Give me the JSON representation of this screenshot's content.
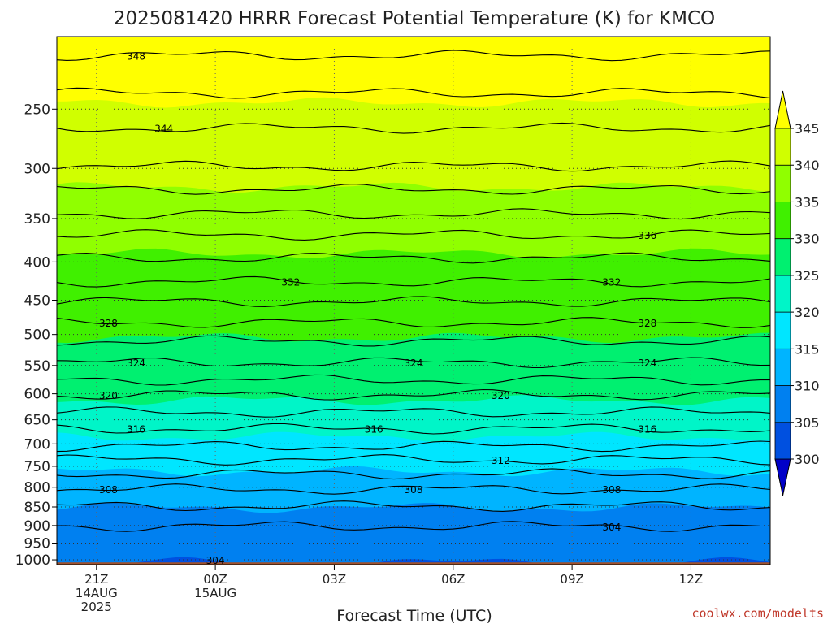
{
  "chart_data": {
    "type": "contour",
    "title": "2025081420 HRRR Forecast Potential Temperature (K) for KMCO",
    "xlabel": "Forecast Time (UTC)",
    "credit": "coolwx.com/modelts",
    "x_ticks": [
      {
        "h": 1,
        "label": "21Z",
        "sub": [
          "14AUG",
          "2025"
        ]
      },
      {
        "h": 4,
        "label": "00Z",
        "sub": [
          "15AUG"
        ]
      },
      {
        "h": 7,
        "label": "03Z",
        "sub": []
      },
      {
        "h": 10,
        "label": "06Z",
        "sub": []
      },
      {
        "h": 13,
        "label": "09Z",
        "sub": []
      },
      {
        "h": 16,
        "label": "12Z",
        "sub": []
      }
    ],
    "xlim": [
      0,
      18
    ],
    "y_ticks": [
      250,
      300,
      350,
      400,
      450,
      500,
      550,
      600,
      650,
      700,
      750,
      800,
      850,
      900,
      950,
      1000
    ],
    "ylim_hpa": [
      200,
      1015
    ],
    "y_scale": "log",
    "colorbar": {
      "levels": [
        300,
        305,
        310,
        315,
        320,
        325,
        330,
        335,
        340,
        345
      ],
      "colors": [
        "#0000c8",
        "#0050e0",
        "#0080f0",
        "#00b4ff",
        "#00e6ff",
        "#00f5c8",
        "#00f070",
        "#40f000",
        "#90ff00",
        "#d0ff00",
        "#ffff00"
      ]
    },
    "fill_bands": [
      {
        "color": "#ffff00",
        "p": 200
      },
      {
        "color": "#d0ff00",
        "p": 245
      },
      {
        "color": "#90ff00",
        "p": 318
      },
      {
        "color": "#40f000",
        "p": 390
      },
      {
        "color": "#00f070",
        "p": 505
      },
      {
        "color": "#00f5c8",
        "p": 612
      },
      {
        "color": "#00e6ff",
        "p": 685
      },
      {
        "color": "#00b4ff",
        "p": 762
      },
      {
        "color": "#0080f0",
        "p": 852
      },
      {
        "color": "#0050e0",
        "p": 1008
      }
    ],
    "isotherms": [
      {
        "value": 348,
        "p": 212
      },
      {
        "value": 346,
        "p": 238
      },
      {
        "value": 344,
        "p": 265
      },
      {
        "value": 342,
        "p": 298
      },
      {
        "value": 340,
        "p": 320
      },
      {
        "value": 338,
        "p": 345
      },
      {
        "value": 336,
        "p": 368
      },
      {
        "value": 334,
        "p": 395
      },
      {
        "value": 332,
        "p": 425
      },
      {
        "value": 330,
        "p": 452
      },
      {
        "value": 328,
        "p": 482
      },
      {
        "value": 326,
        "p": 510
      },
      {
        "value": 324,
        "p": 545
      },
      {
        "value": 322,
        "p": 575
      },
      {
        "value": 320,
        "p": 602
      },
      {
        "value": 318,
        "p": 635
      },
      {
        "value": 316,
        "p": 668
      },
      {
        "value": 314,
        "p": 705
      },
      {
        "value": 312,
        "p": 735
      },
      {
        "value": 310,
        "p": 768
      },
      {
        "value": 308,
        "p": 805
      },
      {
        "value": 306,
        "p": 848
      },
      {
        "value": 304,
        "p": 902
      }
    ],
    "contour_labels": [
      {
        "text": "348",
        "h": 2.0,
        "p": 212
      },
      {
        "text": "344",
        "h": 2.7,
        "p": 265
      },
      {
        "text": "336",
        "h": 14.9,
        "p": 368
      },
      {
        "text": "332",
        "h": 5.9,
        "p": 425
      },
      {
        "text": "332",
        "h": 14.0,
        "p": 425
      },
      {
        "text": "328",
        "h": 1.3,
        "p": 482
      },
      {
        "text": "328",
        "h": 14.9,
        "p": 482
      },
      {
        "text": "324",
        "h": 2.0,
        "p": 545
      },
      {
        "text": "324",
        "h": 9.0,
        "p": 545
      },
      {
        "text": "324",
        "h": 14.9,
        "p": 545
      },
      {
        "text": "320",
        "h": 1.3,
        "p": 602
      },
      {
        "text": "320",
        "h": 11.2,
        "p": 602
      },
      {
        "text": "316",
        "h": 2.0,
        "p": 668
      },
      {
        "text": "316",
        "h": 8.0,
        "p": 668
      },
      {
        "text": "316",
        "h": 14.9,
        "p": 668
      },
      {
        "text": "312",
        "h": 11.2,
        "p": 735
      },
      {
        "text": "308",
        "h": 1.3,
        "p": 805
      },
      {
        "text": "308",
        "h": 9.0,
        "p": 805
      },
      {
        "text": "308",
        "h": 14.0,
        "p": 805
      },
      {
        "text": "304",
        "h": 14.0,
        "p": 902
      },
      {
        "text": "304",
        "h": 4.0,
        "p": 1000
      }
    ],
    "surface_color": "#a0522d"
  }
}
